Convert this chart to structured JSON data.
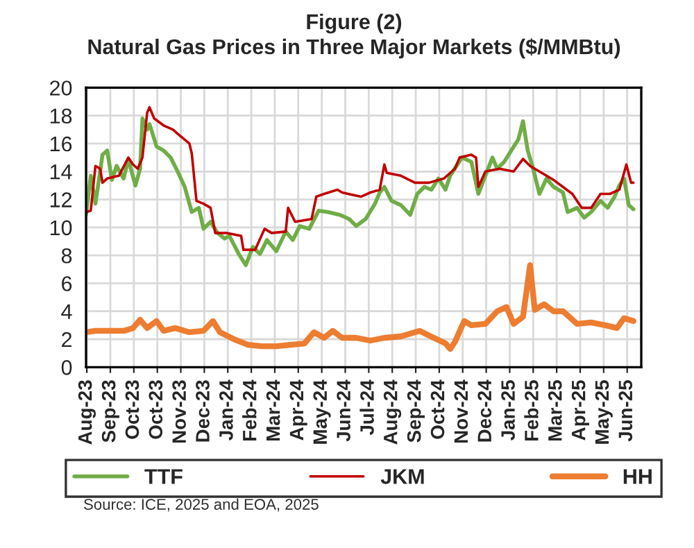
{
  "chart_data": {
    "type": "line",
    "title": "Figure (2)",
    "subtitle": "Natural Gas Prices in Three Major Markets ($/MMBtu)",
    "xlim": [
      "2023-08-01",
      "2025-07-10"
    ],
    "ylim": [
      0,
      20
    ],
    "yticks": [
      0,
      2,
      4,
      6,
      8,
      10,
      12,
      14,
      16,
      18,
      20
    ],
    "xticks": [
      {
        "value": "2023-08-02",
        "label": "Aug-23"
      },
      {
        "value": "2023-09-01",
        "label": "Sep-23"
      },
      {
        "value": "2023-10-01",
        "label": "Oct-23"
      },
      {
        "value": "2023-10-31",
        "label": "Oct-23"
      },
      {
        "value": "2023-11-30",
        "label": "Nov-23"
      },
      {
        "value": "2023-12-30",
        "label": "Dec-23"
      },
      {
        "value": "2024-01-29",
        "label": "Jan-24"
      },
      {
        "value": "2024-02-28",
        "label": "Feb-24"
      },
      {
        "value": "2024-03-29",
        "label": "Mar-24"
      },
      {
        "value": "2024-04-28",
        "label": "Apr-24"
      },
      {
        "value": "2024-05-28",
        "label": "May-24"
      },
      {
        "value": "2024-06-27",
        "label": "Jun-24"
      },
      {
        "value": "2024-07-27",
        "label": "Jul-24"
      },
      {
        "value": "2024-08-26",
        "label": "Aug-24"
      },
      {
        "value": "2024-09-25",
        "label": "Sep-24"
      },
      {
        "value": "2024-10-25",
        "label": "Oct-24"
      },
      {
        "value": "2024-11-24",
        "label": "Nov-24"
      },
      {
        "value": "2024-12-24",
        "label": "Dec-24"
      },
      {
        "value": "2025-01-23",
        "label": "Jan-25"
      },
      {
        "value": "2025-02-22",
        "label": "Feb-25"
      },
      {
        "value": "2025-03-24",
        "label": "Mar-25"
      },
      {
        "value": "2025-04-23",
        "label": "Apr-25"
      },
      {
        "value": "2025-05-23",
        "label": "May-25"
      },
      {
        "value": "2025-06-22",
        "label": "Jun-25"
      }
    ],
    "grid": true,
    "legend": "bottom",
    "annotations": [
      "Source: ICE, 2025 and EOA, 2025"
    ],
    "series": [
      {
        "name": "TTF",
        "color": "#70ad47",
        "x": [
          "2023-08-01",
          "2023-08-07",
          "2023-08-13",
          "2023-08-22",
          "2023-08-28",
          "2023-09-03",
          "2023-09-09",
          "2023-09-18",
          "2023-09-24",
          "2023-10-03",
          "2023-10-09",
          "2023-10-12",
          "2023-10-18",
          "2023-10-21",
          "2023-10-30",
          "2023-11-08",
          "2023-11-17",
          "2023-11-26",
          "2023-12-05",
          "2023-12-14",
          "2023-12-23",
          "2023-12-29",
          "2024-01-07",
          "2024-01-16",
          "2024-01-25",
          "2024-01-31",
          "2024-02-12",
          "2024-02-21",
          "2024-03-01",
          "2024-03-10",
          "2024-03-19",
          "2024-03-31",
          "2024-04-12",
          "2024-04-21",
          "2024-04-30",
          "2024-05-12",
          "2024-05-24",
          "2024-06-05",
          "2024-06-20",
          "2024-07-02",
          "2024-07-11",
          "2024-07-23",
          "2024-08-04",
          "2024-08-10",
          "2024-08-16",
          "2024-08-25",
          "2024-09-06",
          "2024-09-18",
          "2024-09-27",
          "2024-10-06",
          "2024-10-15",
          "2024-10-24",
          "2024-11-02",
          "2024-11-08",
          "2024-11-23",
          "2024-12-05",
          "2024-12-14",
          "2024-12-23",
          "2025-01-01",
          "2025-01-07",
          "2025-01-16",
          "2025-01-25",
          "2025-02-03",
          "2025-02-09",
          "2025-02-15",
          "2025-02-21",
          "2025-03-02",
          "2025-03-11",
          "2025-03-20",
          "2025-04-01",
          "2025-04-07",
          "2025-04-19",
          "2025-04-28",
          "2025-05-07",
          "2025-05-19",
          "2025-05-28",
          "2025-06-06",
          "2025-06-12",
          "2025-06-18",
          "2025-06-24",
          "2025-06-30"
        ],
        "values": [
          10.9,
          13.7,
          11.7,
          15.2,
          15.5,
          13.4,
          14.4,
          13.5,
          14.9,
          13.0,
          14.2,
          17.8,
          17.0,
          17.4,
          15.8,
          15.5,
          15.0,
          14.0,
          12.9,
          11.1,
          11.4,
          9.9,
          10.4,
          9.6,
          9.2,
          9.4,
          8.1,
          7.3,
          8.6,
          8.1,
          9.1,
          8.3,
          9.7,
          9.1,
          10.1,
          9.9,
          11.2,
          11.1,
          10.9,
          10.6,
          10.1,
          10.6,
          11.7,
          12.5,
          12.9,
          11.9,
          11.6,
          10.9,
          12.4,
          12.9,
          12.7,
          13.5,
          12.7,
          13.7,
          15.0,
          14.7,
          12.4,
          13.7,
          15.0,
          14.2,
          14.7,
          15.5,
          16.3,
          17.6,
          15.5,
          14.4,
          12.4,
          13.5,
          12.9,
          12.5,
          11.1,
          11.4,
          10.7,
          11.1,
          11.9,
          11.4,
          12.2,
          13.0,
          13.5,
          11.6,
          11.3
        ]
      },
      {
        "name": "JKM",
        "color": "#c00000",
        "x": [
          "2023-08-01",
          "2023-08-07",
          "2023-08-13",
          "2023-08-19",
          "2023-08-22",
          "2023-08-28",
          "2023-09-12",
          "2023-09-24",
          "2023-09-30",
          "2023-10-06",
          "2023-10-12",
          "2023-10-18",
          "2023-10-21",
          "2023-10-27",
          "2023-11-08",
          "2023-11-20",
          "2023-11-26",
          "2023-12-11",
          "2023-12-14",
          "2023-12-20",
          "2023-12-29",
          "2024-01-07",
          "2024-01-13",
          "2024-01-28",
          "2024-02-15",
          "2024-02-18",
          "2024-03-04",
          "2024-03-16",
          "2024-03-25",
          "2024-04-12",
          "2024-04-15",
          "2024-04-24",
          "2024-05-15",
          "2024-05-21",
          "2024-05-31",
          "2024-06-17",
          "2024-06-23",
          "2024-07-17",
          "2024-07-29",
          "2024-08-10",
          "2024-08-16",
          "2024-08-19",
          "2024-09-06",
          "2024-09-24",
          "2024-10-12",
          "2024-10-31",
          "2024-11-14",
          "2024-11-20",
          "2024-12-05",
          "2024-12-11",
          "2024-12-14",
          "2024-12-23",
          "2025-01-10",
          "2025-01-28",
          "2025-02-09",
          "2025-02-18",
          "2025-03-02",
          "2025-03-20",
          "2025-04-01",
          "2025-04-13",
          "2025-04-25",
          "2025-05-07",
          "2025-05-19",
          "2025-05-31",
          "2025-06-12",
          "2025-06-21",
          "2025-06-27",
          "2025-06-30"
        ],
        "values": [
          11.1,
          11.2,
          14.4,
          14.2,
          13.2,
          13.5,
          13.7,
          15.0,
          14.5,
          14.2,
          15.0,
          18.2,
          18.6,
          17.8,
          17.3,
          17.0,
          16.7,
          16.0,
          15.3,
          11.9,
          11.7,
          11.4,
          9.6,
          9.6,
          9.4,
          8.4,
          8.4,
          9.9,
          9.6,
          9.7,
          11.4,
          10.4,
          10.6,
          12.2,
          12.4,
          12.7,
          12.5,
          12.2,
          12.5,
          12.7,
          14.5,
          13.9,
          13.7,
          13.2,
          13.2,
          13.5,
          14.2,
          15.0,
          15.2,
          15.0,
          12.9,
          14.0,
          14.2,
          14.0,
          14.9,
          14.4,
          14.0,
          13.4,
          12.9,
          12.4,
          11.4,
          11.4,
          12.4,
          12.4,
          12.7,
          14.5,
          13.2,
          13.2
        ]
      },
      {
        "name": "HH",
        "color": "#ed7d31",
        "x": [
          "2023-08-01",
          "2023-08-13",
          "2023-08-31",
          "2023-09-18",
          "2023-09-30",
          "2023-10-09",
          "2023-10-18",
          "2023-10-30",
          "2023-11-08",
          "2023-11-23",
          "2023-12-11",
          "2023-12-29",
          "2024-01-10",
          "2024-01-19",
          "2024-02-06",
          "2024-02-24",
          "2024-03-13",
          "2024-03-31",
          "2024-04-18",
          "2024-05-06",
          "2024-05-18",
          "2024-05-31",
          "2024-06-11",
          "2024-06-23",
          "2024-07-11",
          "2024-07-29",
          "2024-08-16",
          "2024-09-06",
          "2024-09-30",
          "2024-10-18",
          "2024-11-02",
          "2024-11-08",
          "2024-11-14",
          "2024-11-26",
          "2024-12-05",
          "2024-12-23",
          "2025-01-07",
          "2025-01-19",
          "2025-01-28",
          "2025-02-09",
          "2025-02-18",
          "2025-02-24",
          "2025-03-08",
          "2025-03-20",
          "2025-04-01",
          "2025-04-19",
          "2025-05-07",
          "2025-05-25",
          "2025-06-09",
          "2025-06-18",
          "2025-06-30"
        ],
        "values": [
          2.5,
          2.6,
          2.6,
          2.6,
          2.8,
          3.4,
          2.8,
          3.3,
          2.6,
          2.8,
          2.5,
          2.6,
          3.3,
          2.5,
          2.0,
          1.6,
          1.5,
          1.5,
          1.6,
          1.7,
          2.5,
          2.1,
          2.6,
          2.1,
          2.1,
          1.9,
          2.1,
          2.2,
          2.6,
          2.1,
          1.7,
          1.3,
          1.8,
          3.3,
          3.0,
          3.1,
          4.0,
          4.3,
          3.1,
          3.6,
          7.3,
          4.1,
          4.5,
          4.0,
          4.0,
          3.1,
          3.2,
          3.0,
          2.8,
          3.5,
          3.3
        ]
      }
    ]
  }
}
